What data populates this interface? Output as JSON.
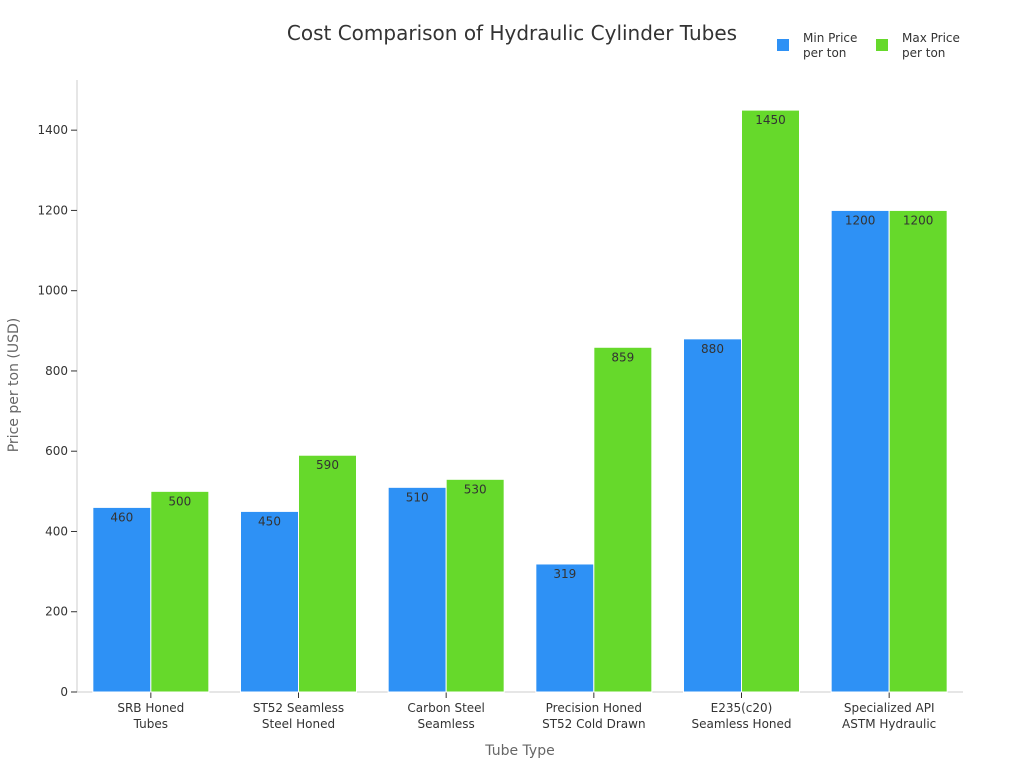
{
  "chart_data": {
    "type": "bar",
    "title": "Cost Comparison of Hydraulic Cylinder Tubes",
    "xlabel": "Tube Type",
    "ylabel": "Price per ton (USD)",
    "categories": [
      [
        "SRB Honed",
        "Tubes"
      ],
      [
        "ST52 Seamless",
        "Steel Honed"
      ],
      [
        "Carbon Steel",
        "Seamless"
      ],
      [
        "Precision Honed",
        "ST52 Cold Drawn"
      ],
      [
        "E235(c20)",
        "Seamless Honed"
      ],
      [
        "Specialized API",
        "ASTM Hydraulic"
      ]
    ],
    "series": [
      {
        "name": [
          "Min Price",
          "per ton"
        ],
        "color": "#2e91f5",
        "values": [
          460,
          450,
          510,
          319,
          880,
          1200
        ]
      },
      {
        "name": [
          "Max Price",
          "per ton"
        ],
        "color": "#66d92b",
        "values": [
          500,
          590,
          530,
          859,
          1450,
          1200
        ]
      }
    ],
    "yticks": [
      0,
      200,
      400,
      600,
      800,
      1000,
      1200,
      1400
    ],
    "ylim": [
      0,
      1525
    ],
    "grid": false,
    "legend_position": "top-right"
  }
}
